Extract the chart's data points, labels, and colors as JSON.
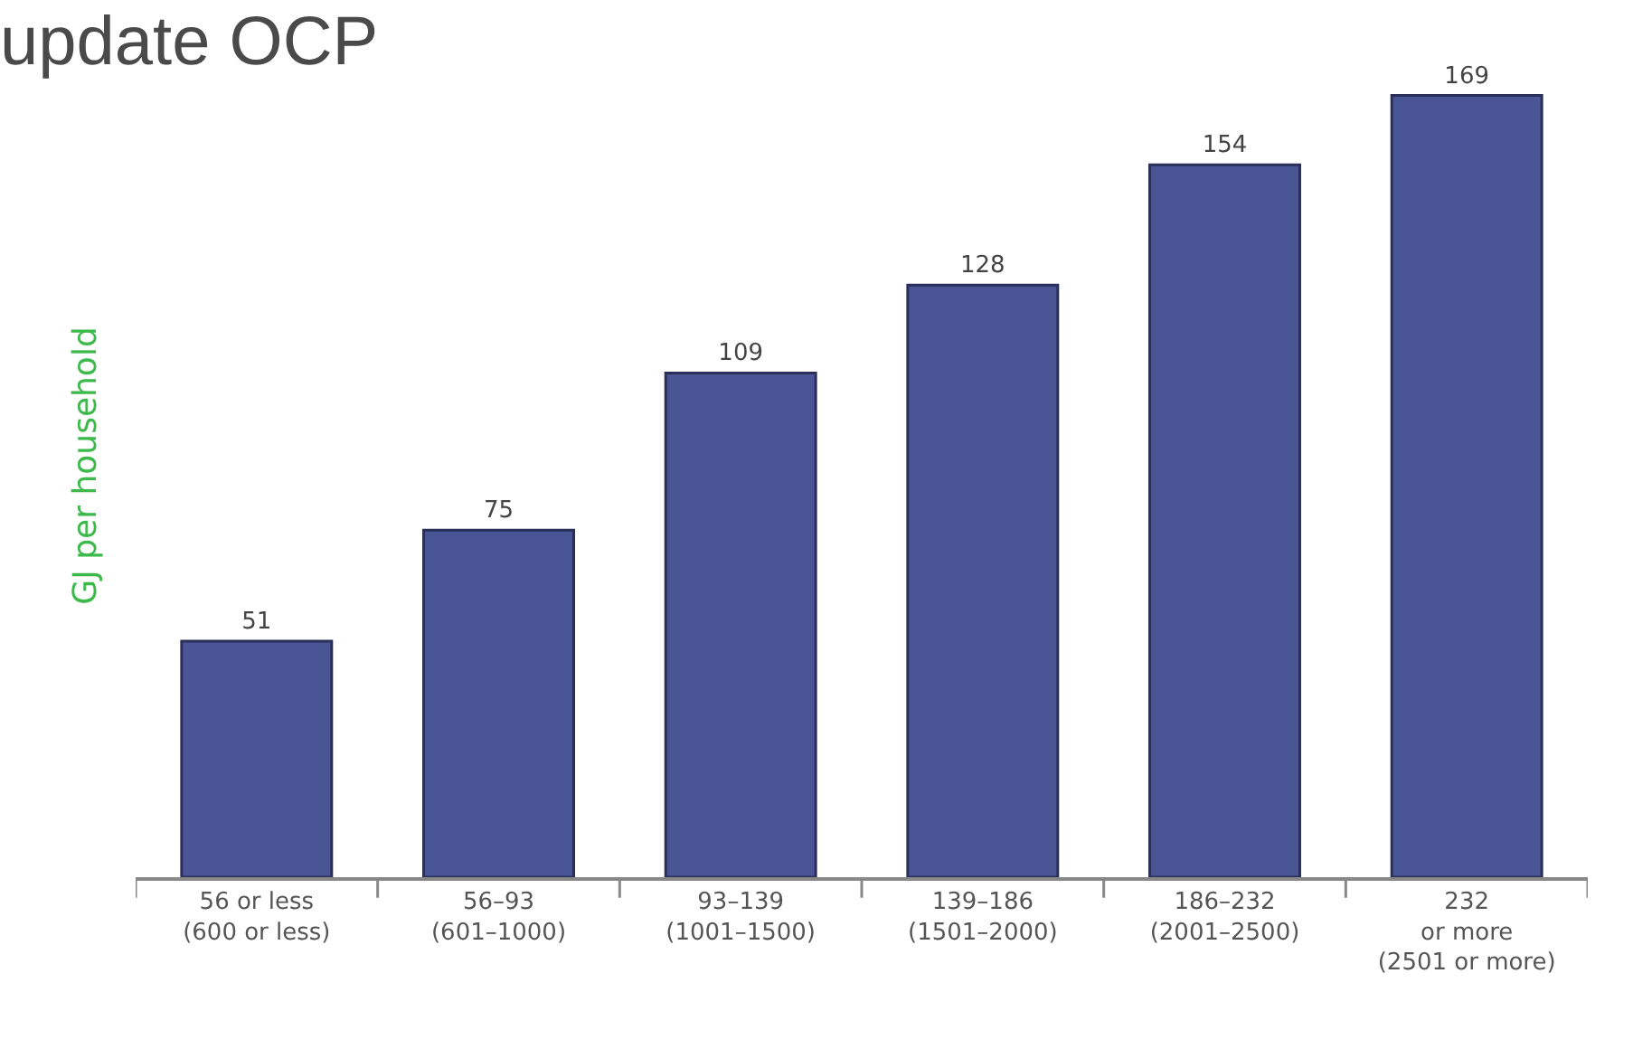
{
  "chart_data": {
    "type": "bar",
    "title": "update OCP",
    "ylabel": "GJ per household",
    "categories": [
      "56 or less\n(600 or less)",
      "56–93\n(601–1000)",
      "93–139\n(1001–1500)",
      "139–186\n(1501–2000)",
      "186–232\n(2001–2500)",
      "232\nor more\n(2501 or more)"
    ],
    "values": [
      51,
      75,
      109,
      128,
      154,
      169
    ],
    "color": "#4a5596",
    "data_labels": true
  }
}
